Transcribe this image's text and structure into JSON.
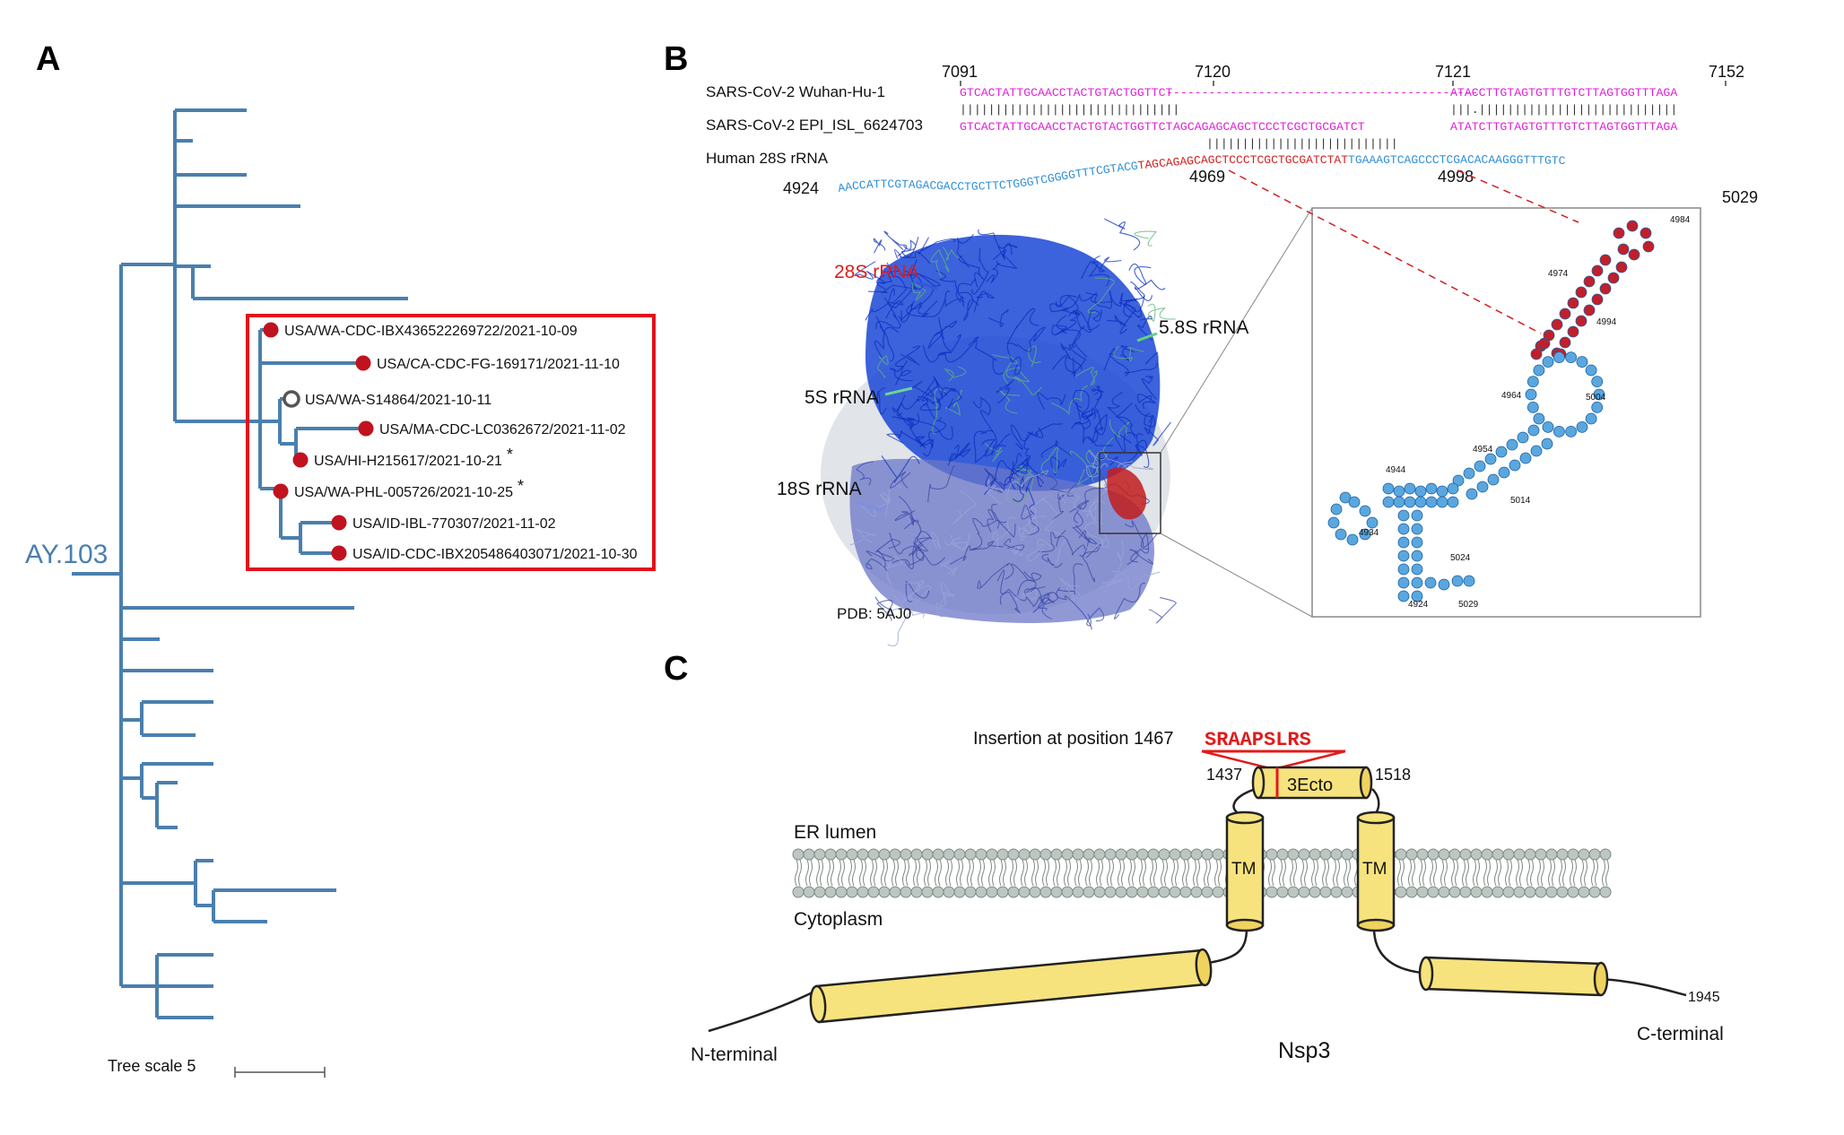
{
  "panels": {
    "a": "A",
    "b": "B",
    "c": "C"
  },
  "panel_a": {
    "lineage": "AY.103",
    "tree_scale": "Tree scale 5",
    "colors": {
      "branch": "#4a7fae",
      "highlight_box": "#e1111b",
      "dot": "#c1121f"
    },
    "highlighted": [
      {
        "label": "USA/WA-CDC-IBX436522269722/2021-10-09",
        "marker": "filled"
      },
      {
        "label": "USA/CA-CDC-FG-169171/2021-11-10",
        "marker": "filled"
      },
      {
        "label": "USA/WA-S14864/2021-10-11",
        "marker": "open"
      },
      {
        "label": "USA/MA-CDC-LC0362672/2021-11-02",
        "marker": "filled"
      },
      {
        "label": "USA/HI-H215617/2021-10-21",
        "marker": "filled",
        "star": "*"
      },
      {
        "label": "USA/WA-PHL-005726/2021-10-25",
        "marker": "filled",
        "star": "*"
      },
      {
        "label": "USA/ID-IBL-770307/2021-11-02",
        "marker": "filled"
      },
      {
        "label": "USA/ID-CDC-IBX205486403071/2021-10-30",
        "marker": "filled"
      }
    ]
  },
  "panel_b": {
    "positions": [
      "7091",
      "7120",
      "7121",
      "7152"
    ],
    "rows": [
      {
        "name": "SARS-CoV-2 Wuhan-Hu-1",
        "seq_left": "GTCACTATTGCAACCTACTGTACTGGTTCT",
        "gap": "--------------------------------------------",
        "seq_right": "ATACCTTGTAGTGTTTGTCTTAGTGGTTTAGA"
      },
      {
        "name": "SARS-CoV-2 EPI_ISL_6624703",
        "seq_left": "GTCACTATTGCAACCTACTGTACTGGTTCT",
        "insert": "AGCAGAGCAGCTCCCTCGCTGCGATCT",
        "seq_right": "ATATCTTGTAGTGTTTGTCTTAGTGGTTTAGA"
      },
      {
        "name": "Human 28S rRNA"
      }
    ],
    "match_line_1": "|||||||||||||||||||||||||||||||",
    "match_line_1b": "|||.||||||||||||||||||||||||||||",
    "match_line_2": "|||||||||||||||||||||||||||",
    "rrna_left": "AACCATTCGTAGACGACCTGCTTCTGGGTCGGGGTTTCGTACG",
    "rrna_mid": "TAGCAGAGCAGCTCCCTCGCTGCGATCTAT",
    "rrna_right": "TGAAAGTCAGCCCTCGACACAAGGGTTTGTC",
    "rrna_positions": [
      "4924",
      "4969",
      "4998",
      "5029"
    ],
    "structure_labels": {
      "r28s": "28S rRNA",
      "r58s": "5.8S rRNA",
      "r5s": "5S rRNA",
      "r18s": "18S rRNA",
      "pdb": "PDB: 5AJ0"
    },
    "numbers": [
      "4984",
      "4974",
      "4994",
      "4964",
      "5004",
      "4954",
      "4944",
      "5014",
      "4934",
      "5024",
      "4924",
      "5029"
    ],
    "colors": {
      "magenta": "#e020d8",
      "blue": "#2f8fd8",
      "red": "#d41f1f",
      "ribosome_blue": "#1a47d6"
    }
  },
  "panel_c": {
    "insertion_label": "Insertion at position 1467",
    "insertion_seq": "SRAAPSLRS",
    "domain": "3Ecto",
    "pos_left": "1437",
    "pos_right": "1518",
    "tm": "TM",
    "er_lumen": "ER lumen",
    "cytoplasm": "Cytoplasm",
    "n_term": "N-terminal",
    "c_term": "C-terminal",
    "end_pos": "1945",
    "protein": "Nsp3",
    "colors": {
      "cylinder": "#f7e37d",
      "insertion": "#e01b1b"
    }
  }
}
